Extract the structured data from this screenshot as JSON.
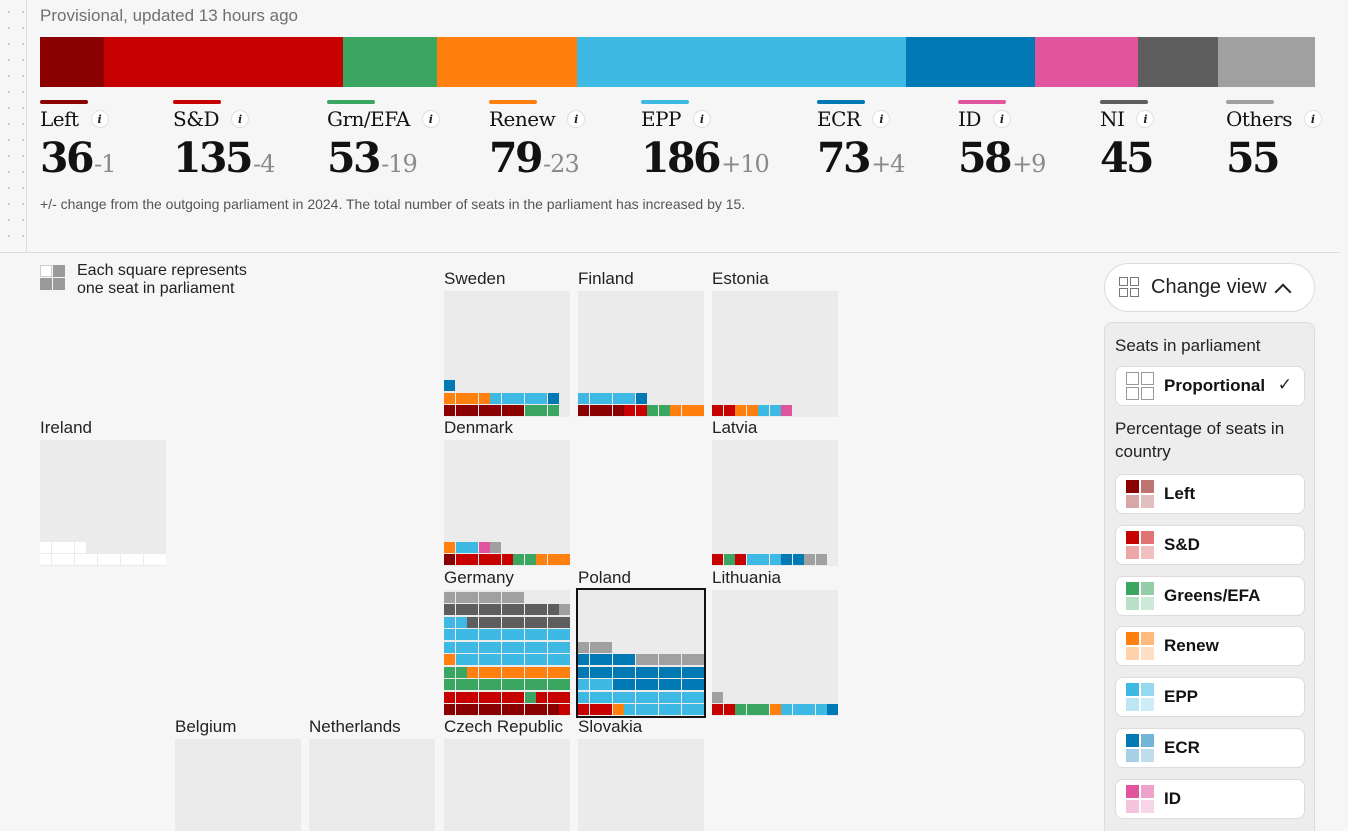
{
  "status": "Provisional, updated 13 hours ago",
  "colors": {
    "left_dark": "#8b0000",
    "sd": "#c70000",
    "greens": "#3aa661",
    "renew": "#ff7f0f",
    "epp": "#3db9e3",
    "ecr": "#0079b5",
    "id": "#e0559e",
    "ni": "#5e5e5e",
    "others": "#a0a0a0"
  },
  "seat_bar": [
    {
      "party": "Left",
      "seats": 36
    },
    {
      "party": "S&D",
      "seats": 135
    },
    {
      "party": "Grn/EFA",
      "seats": 53
    },
    {
      "party": "Renew",
      "seats": 79
    },
    {
      "party": "EPP",
      "seats": 186
    },
    {
      "party": "ECR",
      "seats": 73
    },
    {
      "party": "ID",
      "seats": 58
    },
    {
      "party": "NI",
      "seats": 45
    },
    {
      "party": "Others",
      "seats": 55
    }
  ],
  "parties": [
    {
      "name": "Left",
      "seats": "36",
      "change": "-1"
    },
    {
      "name": "S&D",
      "seats": "135",
      "change": "-4"
    },
    {
      "name": "Grn/EFA",
      "seats": "53",
      "change": "-19"
    },
    {
      "name": "Renew",
      "seats": "79",
      "change": "-23"
    },
    {
      "name": "EPP",
      "seats": "186",
      "change": "+10"
    },
    {
      "name": "ECR",
      "seats": "73",
      "change": "+4"
    },
    {
      "name": "ID",
      "seats": "58",
      "change": "+9"
    },
    {
      "name": "NI",
      "seats": "45",
      "change": ""
    },
    {
      "name": "Others",
      "seats": "55",
      "change": ""
    }
  ],
  "info_glyph": "i",
  "footnote": "+/- change from the outgoing parliament in 2024. The total number of seats in the parliament has increased by 15.",
  "legend": {
    "line1": "Each square represents",
    "line2": "one seat in parliament"
  },
  "countries": {
    "sweden": "Sweden",
    "finland": "Finland",
    "estonia": "Estonia",
    "ireland": "Ireland",
    "denmark": "Denmark",
    "latvia": "Latvia",
    "germany": "Germany",
    "poland": "Poland",
    "lithuania": "Lithuania",
    "belgium": "Belgium",
    "netherlands": "Netherlands",
    "czech": "Czech Republic",
    "slovakia": "Slovakia"
  },
  "view": {
    "button_label": "Change view",
    "seats_heading": "Seats in parliament",
    "proportional": "Proportional",
    "check_glyph": "✓",
    "pct_heading": "Percentage of seats in country",
    "options": [
      "Left",
      "S&D",
      "Greens/EFA",
      "Renew",
      "EPP",
      "ECR",
      "ID"
    ]
  }
}
